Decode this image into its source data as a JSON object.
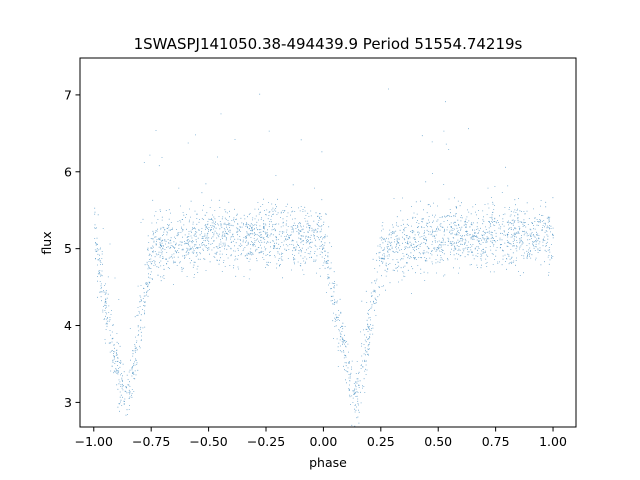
{
  "chart_data": {
    "type": "scatter",
    "title": "1SWASPJ141050.38-494439.9 Period 51554.74219s",
    "xlabel": "phase",
    "ylabel": "flux",
    "xlim": [
      -1.06,
      1.1
    ],
    "ylim": [
      2.68,
      7.48
    ],
    "xticks": [
      -1.0,
      -0.75,
      -0.5,
      -0.25,
      0.0,
      0.25,
      0.5,
      0.75,
      1.0
    ],
    "xtick_labels": [
      "−1.00",
      "−0.75",
      "−0.50",
      "−0.25",
      "0.00",
      "0.25",
      "0.50",
      "0.75",
      "1.00"
    ],
    "yticks": [
      3,
      4,
      5,
      6,
      7
    ],
    "ytick_labels": [
      "3",
      "4",
      "5",
      "6",
      "7"
    ],
    "grid": false,
    "marker_color": "#1f77b4",
    "series": [
      {
        "description_profile_x": [
          -1.0,
          -0.95,
          -0.9,
          -0.87,
          -0.85,
          -0.8,
          -0.75,
          -0.5,
          0.0,
          0.05,
          0.1,
          0.13,
          0.15,
          0.2,
          0.25,
          0.5,
          1.0
        ],
        "description_profile_y": [
          5.15,
          4.2,
          3.5,
          3.05,
          3.1,
          4.0,
          5.0,
          5.15,
          5.15,
          4.2,
          3.5,
          3.05,
          3.1,
          4.0,
          5.0,
          5.15,
          5.15
        ],
        "baseline_flux": 5.15,
        "baseline_scatter": 0.2,
        "eclipse_minima_phase": [
          -0.87,
          0.13
        ],
        "eclipse_min_flux": 2.95,
        "point_count": 16000
      }
    ]
  }
}
